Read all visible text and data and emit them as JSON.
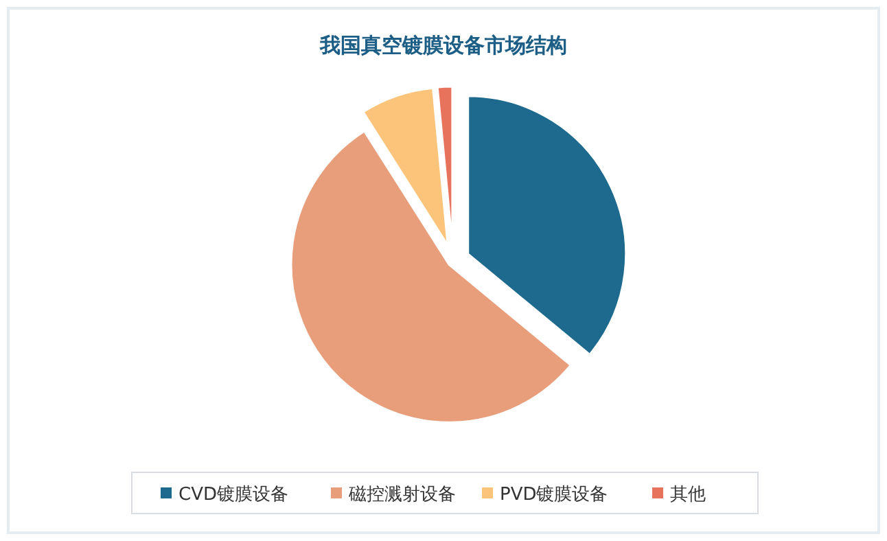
{
  "chart_data": {
    "type": "pie",
    "title": "我国真空镀膜设备市场结构",
    "categories": [
      "CVD镀膜设备",
      "磁控溅射设备",
      "PVD镀膜设备",
      "其他"
    ],
    "values": [
      36,
      55,
      7.5,
      1.5
    ],
    "colors": [
      "#1d6a8e",
      "#e89e7a",
      "#fcc47a",
      "#e8735c"
    ],
    "legend": "bottom"
  }
}
